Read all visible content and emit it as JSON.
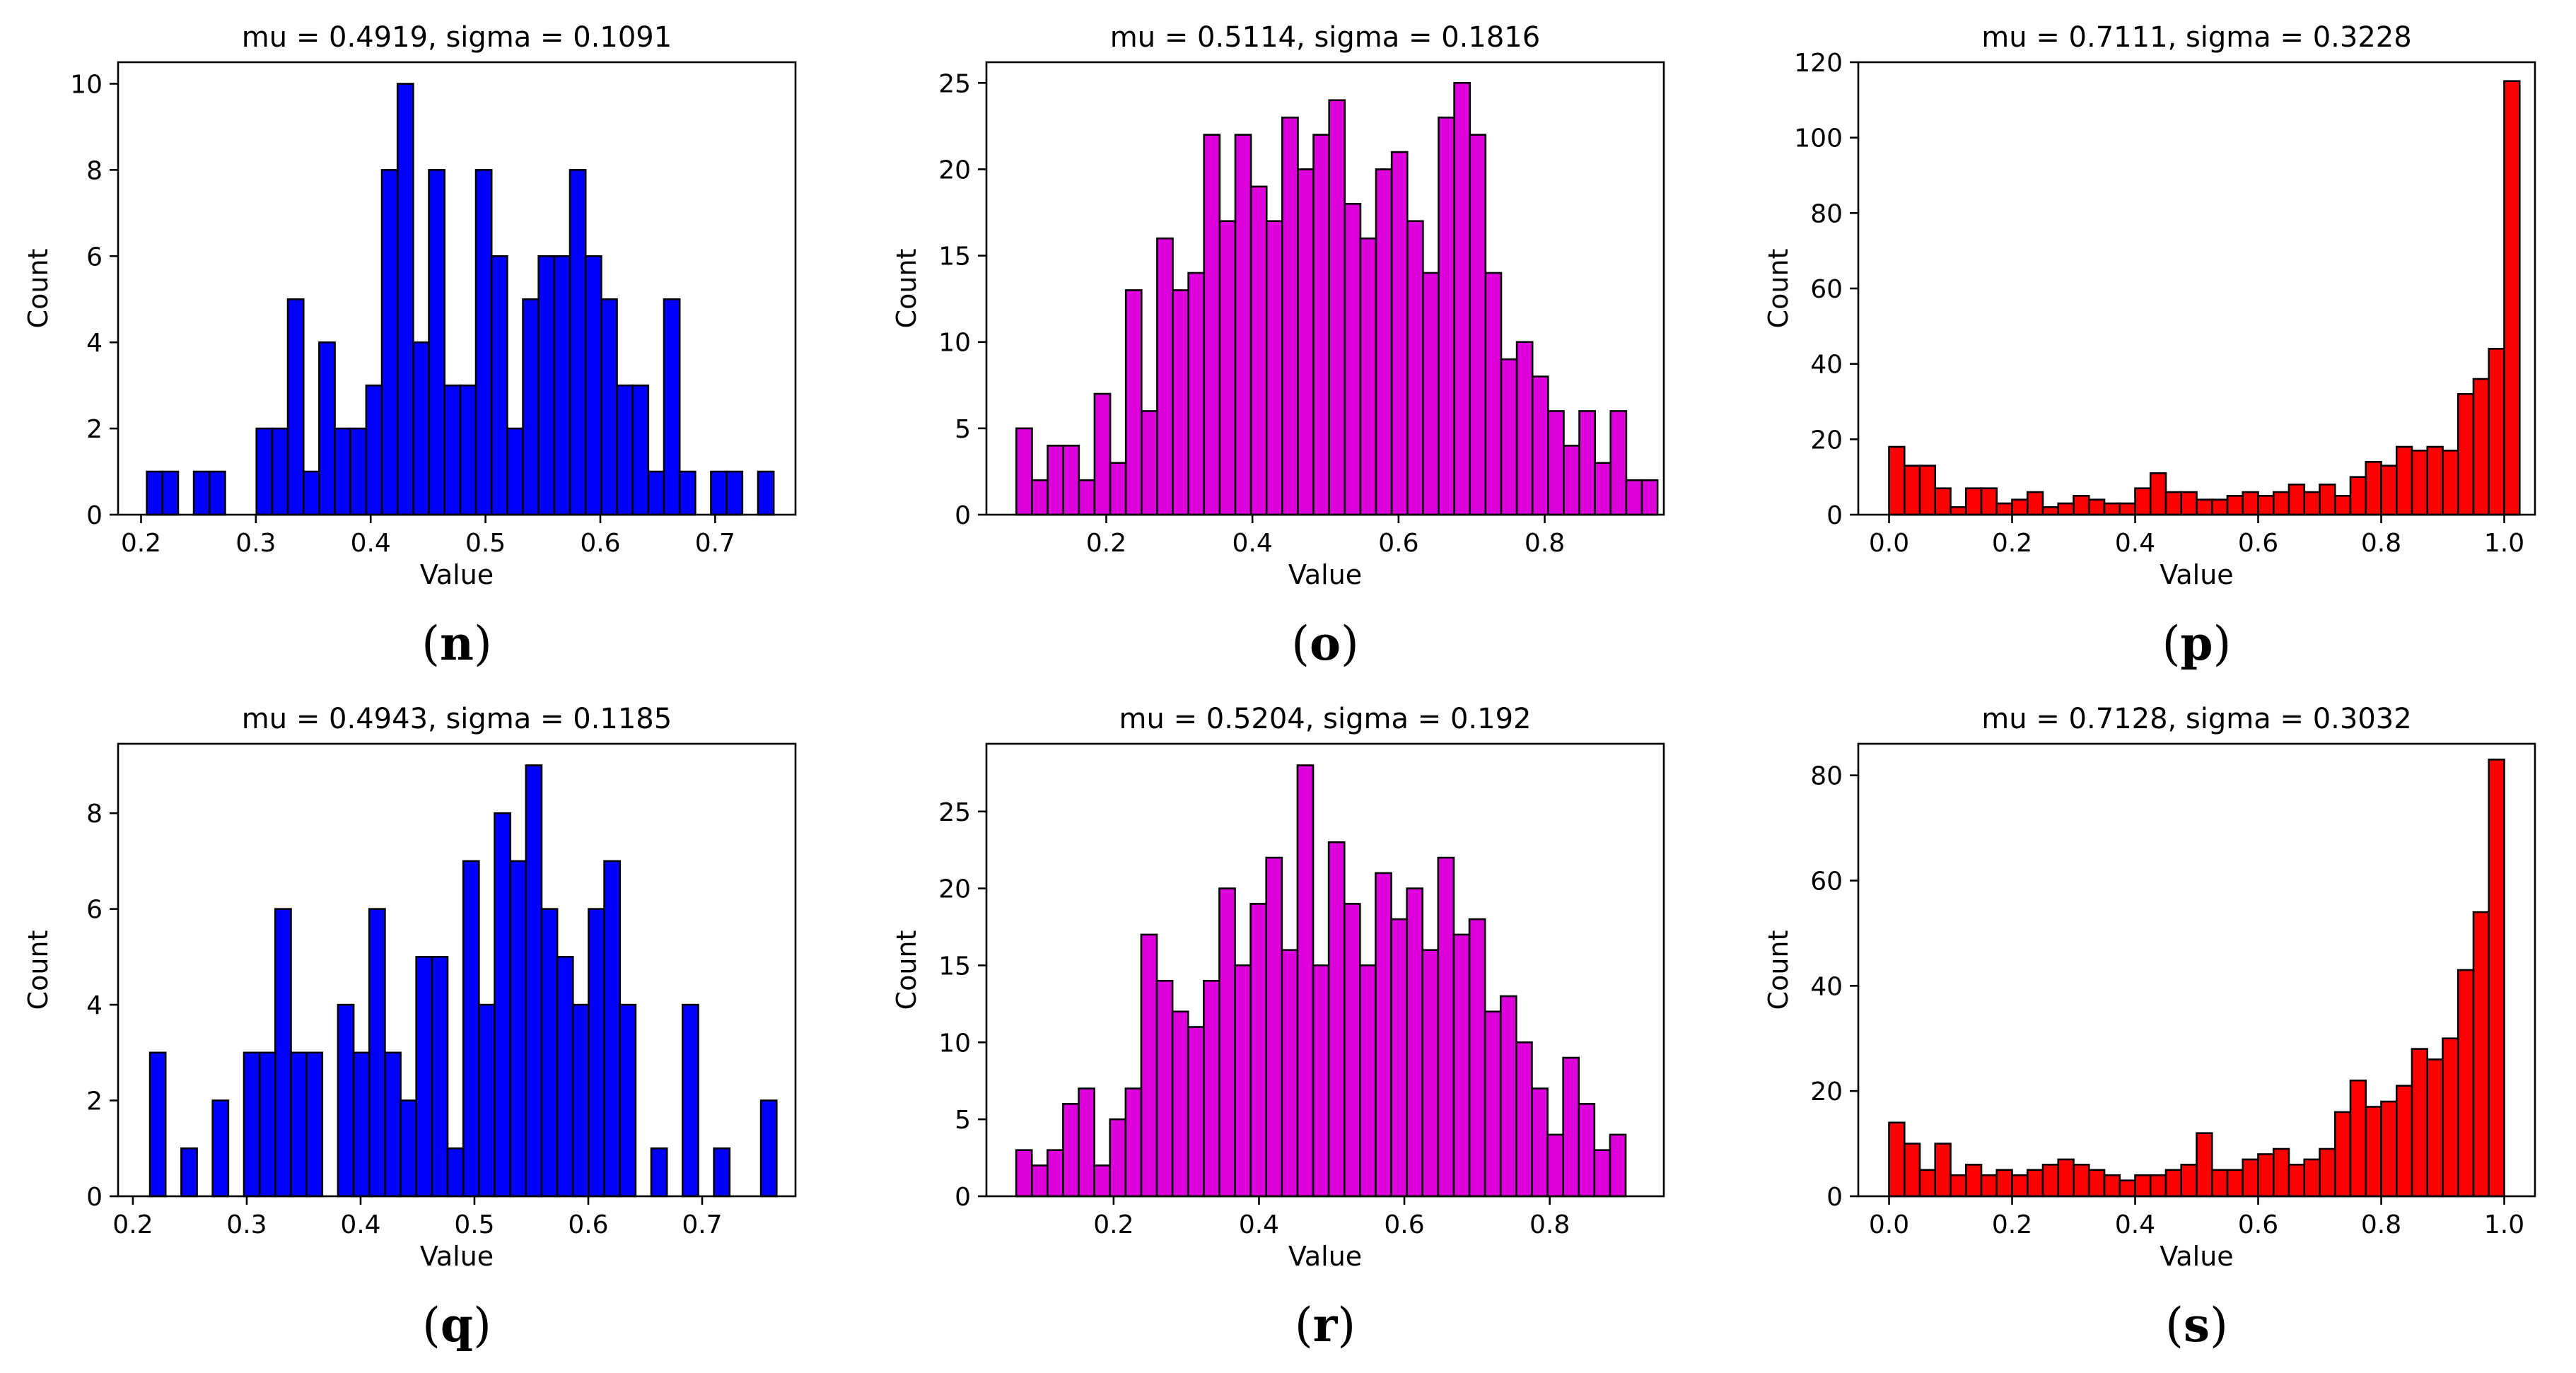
{
  "chart_data": [
    {
      "id": "n",
      "type": "bar",
      "title": "mu = 0.4919, sigma = 0.1091",
      "xlabel": "Value",
      "ylabel": "Count",
      "panel_label": "n",
      "color": "#0000ff",
      "xlim": [
        0.18,
        0.77
      ],
      "ylim": [
        0,
        10.5
      ],
      "xticks": [
        0.2,
        0.3,
        0.4,
        0.5,
        0.6,
        0.7
      ],
      "xtick_labels": [
        "0.2",
        "0.3",
        "0.4",
        "0.5",
        "0.6",
        "0.7"
      ],
      "yticks": [
        0,
        2,
        4,
        6,
        8,
        10
      ],
      "ytick_labels": [
        "0",
        "2",
        "4",
        "6",
        "8",
        "10"
      ],
      "bin_start": 0.205,
      "bin_width": 0.01365,
      "values": [
        1,
        1,
        0,
        1,
        1,
        0,
        0,
        2,
        2,
        5,
        1,
        4,
        2,
        2,
        3,
        8,
        10,
        4,
        8,
        3,
        3,
        8,
        6,
        2,
        5,
        6,
        6,
        8,
        6,
        5,
        3,
        3,
        1,
        5,
        1,
        0,
        1,
        1,
        0,
        1
      ]
    },
    {
      "id": "o",
      "type": "bar",
      "title": "mu = 0.5114, sigma = 0.1816",
      "xlabel": "Value",
      "ylabel": "Count",
      "panel_label": "o",
      "color": "#dd00dd",
      "xlim": [
        0.036,
        0.963
      ],
      "ylim": [
        0,
        26.2
      ],
      "xticks": [
        0.2,
        0.4,
        0.6,
        0.8
      ],
      "xtick_labels": [
        "0.2",
        "0.4",
        "0.6",
        "0.8"
      ],
      "yticks": [
        0,
        5,
        10,
        15,
        20,
        25
      ],
      "ytick_labels": [
        "0",
        "5",
        "10",
        "15",
        "20",
        "25"
      ],
      "bin_start": 0.077,
      "bin_width": 0.0214,
      "values": [
        5,
        2,
        4,
        4,
        2,
        7,
        3,
        13,
        6,
        16,
        13,
        14,
        22,
        17,
        22,
        19,
        17,
        23,
        20,
        22,
        24,
        18,
        16,
        20,
        21,
        17,
        14,
        23,
        25,
        22,
        14,
        9,
        10,
        8,
        6,
        4,
        6,
        3,
        6,
        2,
        2
      ]
    },
    {
      "id": "p",
      "type": "bar",
      "title": "mu = 0.7111, sigma = 0.3228",
      "xlabel": "Value",
      "ylabel": "Count",
      "panel_label": "p",
      "color": "#ff0000",
      "xlim": [
        -0.05,
        1.05
      ],
      "ylim": [
        0,
        120
      ],
      "xticks": [
        0.0,
        0.2,
        0.4,
        0.6,
        0.8,
        1.0
      ],
      "xtick_labels": [
        "0.0",
        "0.2",
        "0.4",
        "0.6",
        "0.8",
        "1.0"
      ],
      "yticks": [
        0,
        20,
        40,
        60,
        80,
        100,
        120
      ],
      "ytick_labels": [
        "0",
        "20",
        "40",
        "60",
        "80",
        "100",
        "120"
      ],
      "bin_start": 0.0,
      "bin_width": 0.025,
      "values": [
        18,
        13,
        13,
        7,
        2,
        7,
        7,
        3,
        4,
        6,
        2,
        3,
        5,
        4,
        3,
        3,
        7,
        11,
        6,
        6,
        4,
        4,
        5,
        6,
        5,
        6,
        8,
        6,
        8,
        5,
        10,
        14,
        13,
        18,
        17,
        18,
        17,
        32,
        36,
        44,
        115
      ]
    },
    {
      "id": "q",
      "type": "bar",
      "title": "mu = 0.4943, sigma = 0.1185",
      "xlabel": "Value",
      "ylabel": "Count",
      "panel_label": "q",
      "color": "#0000ff",
      "xlim": [
        0.187,
        0.782
      ],
      "ylim": [
        0,
        9.45
      ],
      "xticks": [
        0.2,
        0.3,
        0.4,
        0.5,
        0.6,
        0.7
      ],
      "xtick_labels": [
        "0.2",
        "0.3",
        "0.4",
        "0.5",
        "0.6",
        "0.7"
      ],
      "yticks": [
        0,
        2,
        4,
        6,
        8
      ],
      "ytick_labels": [
        "0",
        "2",
        "4",
        "6",
        "8"
      ],
      "bin_start": 0.215,
      "bin_width": 0.01376,
      "values": [
        3,
        0,
        1,
        0,
        2,
        0,
        3,
        3,
        6,
        3,
        3,
        0,
        4,
        3,
        6,
        3,
        2,
        5,
        5,
        1,
        7,
        4,
        8,
        7,
        9,
        6,
        5,
        4,
        6,
        7,
        4,
        0,
        1,
        0,
        4,
        0,
        1,
        0,
        0,
        2
      ]
    },
    {
      "id": "r",
      "type": "bar",
      "title": "mu = 0.5204, sigma = 0.192",
      "xlabel": "Value",
      "ylabel": "Count",
      "panel_label": "r",
      "color": "#dd00dd",
      "xlim": [
        0.025,
        0.957
      ],
      "ylim": [
        0,
        29.4
      ],
      "xticks": [
        0.2,
        0.4,
        0.6,
        0.8
      ],
      "xtick_labels": [
        "0.2",
        "0.4",
        "0.6",
        "0.8"
      ],
      "yticks": [
        0,
        5,
        10,
        15,
        20,
        25
      ],
      "ytick_labels": [
        "0",
        "5",
        "10",
        "15",
        "20",
        "25"
      ],
      "bin_start": 0.066,
      "bin_width": 0.0215,
      "values": [
        3,
        2,
        3,
        6,
        7,
        2,
        5,
        7,
        17,
        14,
        12,
        11,
        14,
        20,
        15,
        19,
        22,
        16,
        28,
        15,
        23,
        19,
        15,
        21,
        18,
        20,
        16,
        22,
        17,
        18,
        12,
        13,
        10,
        7,
        4,
        9,
        6,
        3,
        4
      ]
    },
    {
      "id": "s",
      "type": "bar",
      "title": "mu = 0.7128, sigma = 0.3032",
      "xlabel": "Value",
      "ylabel": "Count",
      "panel_label": "s",
      "color": "#ff0000",
      "xlim": [
        -0.05,
        1.05
      ],
      "ylim": [
        0,
        86
      ],
      "xticks": [
        0.0,
        0.2,
        0.4,
        0.6,
        0.8,
        1.0
      ],
      "xtick_labels": [
        "0.0",
        "0.2",
        "0.4",
        "0.6",
        "0.8",
        "1.0"
      ],
      "yticks": [
        0,
        20,
        40,
        60,
        80
      ],
      "ytick_labels": [
        "0",
        "20",
        "40",
        "60",
        "80"
      ],
      "bin_start": 0.0,
      "bin_width": 0.025,
      "values": [
        14,
        10,
        5,
        10,
        4,
        6,
        4,
        5,
        4,
        5,
        6,
        7,
        6,
        5,
        4,
        3,
        4,
        4,
        5,
        6,
        12,
        5,
        5,
        7,
        8,
        9,
        6,
        7,
        9,
        16,
        22,
        17,
        18,
        21,
        28,
        26,
        30,
        43,
        54,
        83
      ]
    }
  ]
}
